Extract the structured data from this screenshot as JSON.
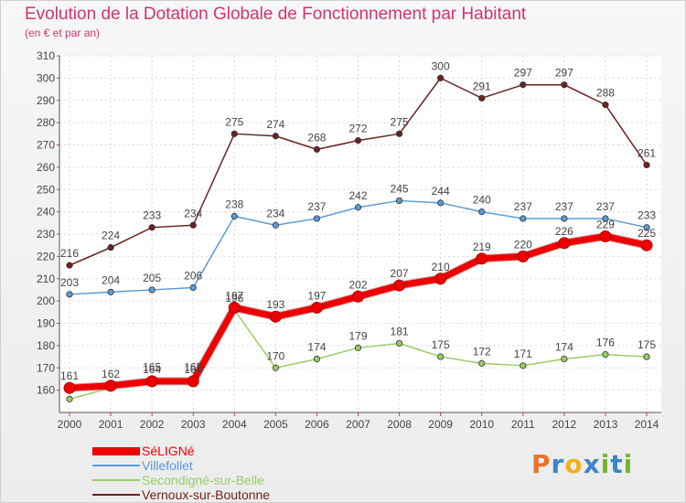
{
  "header": {
    "title": "Evolution de la Dotation Globale de Fonctionnement par Habitant",
    "subtitle": "(en € et par an)"
  },
  "logo": {
    "text": "Proxiti",
    "letters": [
      "P",
      "r",
      "o",
      "x",
      "i",
      "t",
      "i"
    ],
    "colors": [
      "#e8742a",
      "#3a86c8",
      "#f0b21a",
      "#3a86c8",
      "#7ab530",
      "#3a86c8",
      "#7ab530"
    ]
  },
  "chart_data": {
    "type": "line",
    "title": "Evolution de la Dotation Globale de Fonctionnement par Habitant",
    "subtitle": "(en € et par an)",
    "xlabel": "",
    "ylabel": "",
    "ylim": [
      150,
      310
    ],
    "yticks": [
      160,
      170,
      180,
      190,
      200,
      210,
      220,
      230,
      240,
      250,
      260,
      270,
      280,
      290,
      300,
      310
    ],
    "grid": true,
    "legend_position": "bottom-left",
    "x": [
      "2000",
      "2001",
      "2002",
      "2003",
      "2004",
      "2005",
      "2006",
      "2007",
      "2008",
      "2009",
      "2010",
      "2011",
      "2012",
      "2013",
      "2014"
    ],
    "series": [
      {
        "name": "SéLIGNé",
        "color": "#ee0000",
        "emphasis": true,
        "values": [
          161,
          162,
          164,
          164,
          197,
          193,
          197,
          202,
          207,
          210,
          219,
          220,
          226,
          229,
          225
        ],
        "labels": [
          "161",
          "162",
          "164",
          "164",
          "197",
          "193",
          "197",
          "202",
          "207",
          "210",
          "219",
          "220",
          "226",
          "229",
          "225"
        ]
      },
      {
        "name": "Villefollet",
        "color": "#5b9bd5",
        "emphasis": false,
        "values": [
          203,
          204,
          205,
          206,
          238,
          234,
          237,
          242,
          245,
          244,
          240,
          237,
          237,
          237,
          233
        ],
        "labels": [
          "203",
          "204",
          "205",
          "206",
          "238",
          "234",
          "237",
          "242",
          "245",
          "244",
          "240",
          "237",
          "237",
          "237",
          "233"
        ]
      },
      {
        "name": "Secondigné-sur-Belle",
        "color": "#99cc66",
        "emphasis": false,
        "values": [
          156,
          161,
          165,
          165,
          196,
          170,
          174,
          179,
          181,
          175,
          172,
          171,
          174,
          176,
          175
        ],
        "labels": [
          "",
          "",
          "165",
          "165",
          "196",
          "170",
          "174",
          "179",
          "181",
          "175",
          "172",
          "171",
          "174",
          "176",
          "175"
        ]
      },
      {
        "name": "Vernoux-sur-Boutonne",
        "color": "#6b2222",
        "emphasis": false,
        "values": [
          216,
          224,
          233,
          234,
          275,
          274,
          268,
          272,
          275,
          300,
          291,
          297,
          297,
          288,
          261
        ],
        "labels": [
          "216",
          "224",
          "233",
          "234",
          "275",
          "274",
          "268",
          "272",
          "275",
          "300",
          "291",
          "297",
          "297",
          "288",
          "261"
        ]
      }
    ]
  }
}
